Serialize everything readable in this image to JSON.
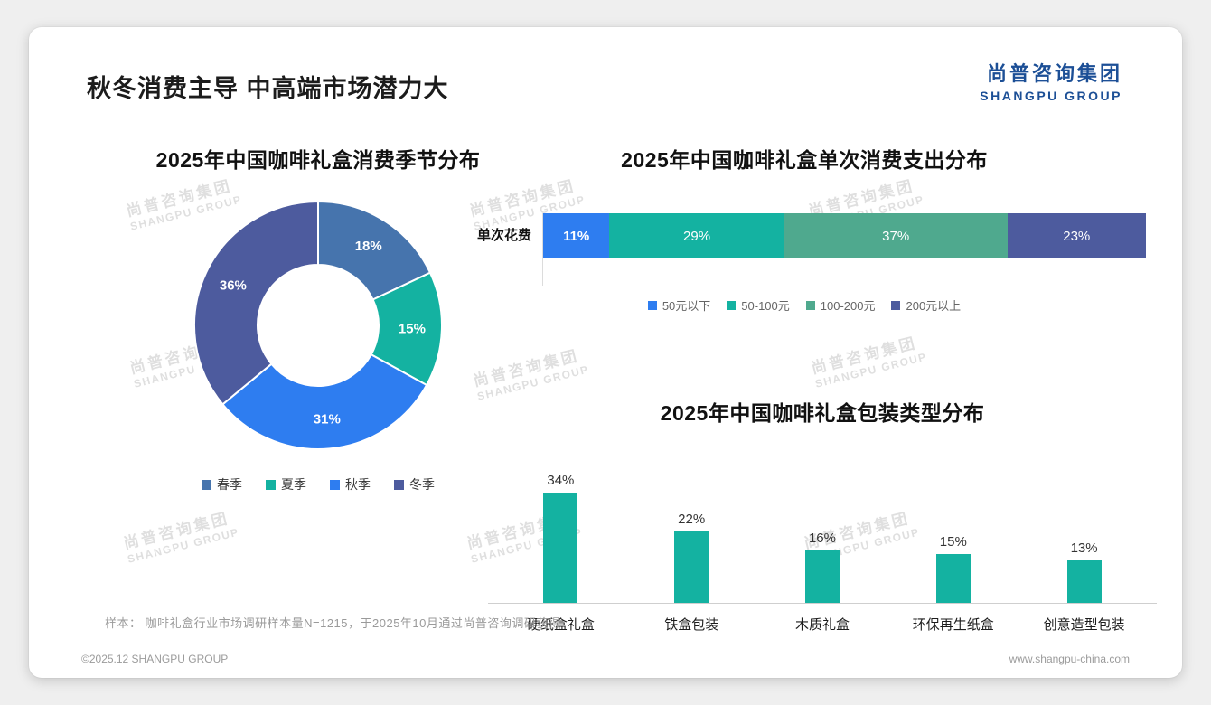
{
  "page": {
    "title": "秋冬消费主导 中高端市场潜力大",
    "logo": {
      "cn": "尚普咨询集团",
      "en": "SHANGPU GROUP"
    },
    "watermark": {
      "cn": "尚普咨询集团",
      "en": "SHANGPU GROUP"
    },
    "note": "样本： 咖啡礼盒行业市场调研样本量N=1215，于2025年10月通过尚普咨询调研获得",
    "footer": {
      "left": "©2025.12 SHANGPU GROUP",
      "right": "www.shangpu-china.com"
    }
  },
  "colors": {
    "brand_blue": "#1c4f96",
    "teal": "#14b2a1",
    "bright_blue": "#2e7df0",
    "steel_blue": "#4674ad",
    "slate_blue": "#4d5b9e",
    "sea_green": "#4fa98e"
  },
  "chart_data": [
    {
      "type": "pie",
      "subtype": "donut",
      "title": "2025年中国咖啡礼盒消费季节分布",
      "categories": [
        "春季",
        "夏季",
        "秋季",
        "冬季"
      ],
      "values": [
        18,
        15,
        31,
        36
      ],
      "labels": [
        "18%",
        "15%",
        "31%",
        "36%"
      ],
      "colors": [
        "#4674ad",
        "#14b2a1",
        "#2e7df0",
        "#4d5b9e"
      ],
      "legend_position": "bottom",
      "start_angle_deg": -90
    },
    {
      "type": "bar",
      "subtype": "stacked-horizontal",
      "title": "2025年中国咖啡礼盒单次消费支出分布",
      "row_label": "单次花费",
      "categories": [
        "50元以下",
        "50-100元",
        "100-200元",
        "200元以上"
      ],
      "values": [
        11,
        29,
        37,
        23
      ],
      "labels": [
        "11%",
        "29%",
        "37%",
        "23%"
      ],
      "colors": [
        "#2e7df0",
        "#14b2a1",
        "#4fa98e",
        "#4d5b9e"
      ],
      "legend_position": "bottom"
    },
    {
      "type": "bar",
      "title": "2025年中国咖啡礼盒包装类型分布",
      "categories": [
        "硬纸盒礼盒",
        "铁盒包装",
        "木质礼盒",
        "环保再生纸盒",
        "创意造型包装"
      ],
      "values": [
        34,
        22,
        16,
        15,
        13
      ],
      "labels": [
        "34%",
        "22%",
        "16%",
        "15%",
        "13%"
      ],
      "bar_color": "#14b2a1",
      "ylim": [
        0,
        40
      ],
      "grid": false
    }
  ]
}
